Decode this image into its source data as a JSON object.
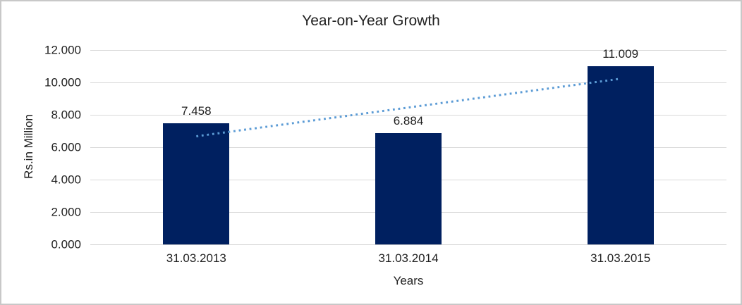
{
  "chart_data": {
    "type": "bar",
    "title": "Year-on-Year Growth",
    "xlabel": "Years",
    "ylabel": "Rs.in Million",
    "categories": [
      "31.03.2013",
      "31.03.2014",
      "31.03.2015"
    ],
    "values": [
      7458,
      6884,
      11009
    ],
    "data_labels": [
      "7.458",
      "6.884",
      "11.009"
    ],
    "ylim": [
      0,
      12000
    ],
    "ytick_values": [
      0,
      2000,
      4000,
      6000,
      8000,
      10000,
      12000
    ],
    "ytick_labels": [
      "0.000",
      "2.000",
      "4.000",
      "6.000",
      "8.000",
      "10.000",
      "12.000"
    ],
    "grid": true,
    "legend": "none",
    "bar_color": "#002060",
    "gridline_color": "#d9d9d9",
    "axis_line_color": "#d0d0d0",
    "trendline": {
      "type": "linear",
      "style": "dotted",
      "color": "#5b9bd5",
      "start_value": 6675,
      "end_value": 10226
    }
  }
}
